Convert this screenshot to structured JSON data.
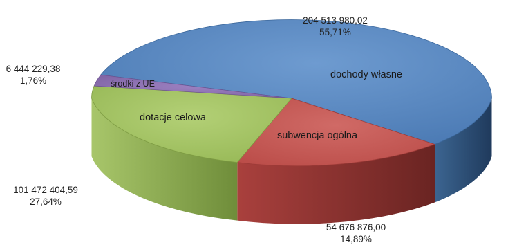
{
  "chart_data": {
    "type": "pie",
    "title": "",
    "three_d": true,
    "slices": [
      {
        "name": "dochody własne",
        "value": 204513980.02,
        "value_label": "204 513 980,02",
        "percent_label": "55,71%",
        "color": "#4f81bd"
      },
      {
        "name": "subwencja ogólna",
        "value": 54676876.0,
        "value_label": "54 676 876,00",
        "percent_label": "14,89%",
        "color": "#c0504d"
      },
      {
        "name": "dotacje celowa",
        "value": 101472404.59,
        "value_label": "101 472 404,59",
        "percent_label": "27,64%",
        "color": "#9bbb59"
      },
      {
        "name": "środki z UE",
        "value": 6444229.38,
        "value_label": "6 444 229,38",
        "percent_label": "1,76%",
        "color": "#8064a2"
      }
    ]
  }
}
